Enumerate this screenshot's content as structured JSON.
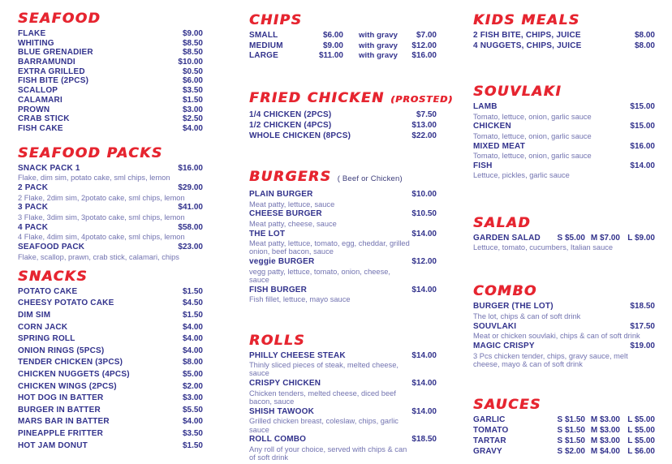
{
  "colors": {
    "heading_red": "#e62530",
    "text_blue": "#32328c",
    "desc_blue": "#7273b0",
    "background": "#ffffff"
  },
  "menu": {
    "left": {
      "seafood": {
        "title": "SEAFOOD",
        "items": [
          {
            "label": "FLAKE",
            "price": "$9.00"
          },
          {
            "label": "WHITING",
            "price": "$8.50"
          },
          {
            "label": "BLUE GRENADIER",
            "price": "$8.50"
          },
          {
            "label": "BARRAMUNDI",
            "price": "$10.00"
          },
          {
            "label": "EXTRA GRILLED",
            "price": "$0.50"
          },
          {
            "label": "FISH BITE (2PCS)",
            "price": "$6.00"
          },
          {
            "label": "SCALLOP",
            "price": "$3.50"
          },
          {
            "label": "CALAMARI",
            "price": "$1.50"
          },
          {
            "label": "PROWN",
            "price": "$3.00"
          },
          {
            "label": "CRAB STICK",
            "price": "$2.50"
          },
          {
            "label": "FISH CAKE",
            "price": "$4.00"
          }
        ]
      },
      "seafood_packs": {
        "title": "SEAFOOD PACKS",
        "items": [
          {
            "label": "SNACK PACK 1",
            "price": "$16.00",
            "desc": "Flake, dim sim, potato cake, sml chips, lemon"
          },
          {
            "label": "2 PACK",
            "price": "$29.00",
            "desc": "2 Flake, 2dim sim, 2potato cake, sml chips, lemon"
          },
          {
            "label": "3 PACK",
            "price": "$41.00",
            "desc": "3 Flake, 3dim sim, 3potato cake, sml chips, lemon"
          },
          {
            "label": "4 PACK",
            "price": "$58.00",
            "desc": "4 Flake, 4dim sim, 4potato cake, sml chips, lemon"
          },
          {
            "label": "SEAFOOD PACK",
            "price": "$23.00",
            "desc": "Flake, scallop, prawn, crab stick, calamari, chips"
          }
        ]
      },
      "snacks": {
        "title": "SNACKS",
        "items": [
          {
            "label": "POTATO CAKE",
            "price": "$1.50"
          },
          {
            "label": "CHEESY POTATO CAKE",
            "price": "$4.50"
          },
          {
            "label": "DIM SIM",
            "price": "$1.50"
          },
          {
            "label": "CORN JACK",
            "price": "$4.00"
          },
          {
            "label": "SPRING ROLL",
            "price": "$4.00"
          },
          {
            "label": "ONION RINGS (5PCS)",
            "price": "$4.00"
          },
          {
            "label": "TENDER CHICKEN (3PCS)",
            "price": "$8.00"
          },
          {
            "label": "CHICKEN NUGGETS (4PCS)",
            "price": "$5.00"
          },
          {
            "label": "CHICKEN WINGS (2PCS)",
            "price": "$2.00"
          },
          {
            "label": "HOT DOG IN BATTER",
            "price": "$3.00"
          },
          {
            "label": "BURGER IN BATTER",
            "price": "$5.50"
          },
          {
            "label": "MARS BAR IN BATTER",
            "price": "$4.00"
          },
          {
            "label": "PINEAPPLE FRITTER",
            "price": "$3.50"
          },
          {
            "label": "HOT JAM DONUT",
            "price": "$1.50"
          }
        ]
      }
    },
    "middle": {
      "chips": {
        "title": "CHIPS",
        "items": [
          {
            "label": "SMALL",
            "price": "$6.00",
            "gravy_label": "with gravy",
            "gravy_price": "$7.00"
          },
          {
            "label": "MEDIUM",
            "price": "$9.00",
            "gravy_label": "with gravy",
            "gravy_price": "$12.00"
          },
          {
            "label": "LARGE",
            "price": "$11.00",
            "gravy_label": "with gravy",
            "gravy_price": "$16.00"
          }
        ]
      },
      "fried_chicken": {
        "title": "FRIED CHICKEN",
        "suffix": "(PROSTED)",
        "items": [
          {
            "label": "1/4 CHICKEN (2PCS)",
            "price": "$7.50"
          },
          {
            "label": "1/2 CHICKEN (4PCS)",
            "price": "$13.00"
          },
          {
            "label": "WHOLE CHICKEN (8PCS)",
            "price": "$22.00"
          }
        ]
      },
      "burgers": {
        "title": "BURGERS",
        "suffix": "( Beef or Chicken)",
        "items": [
          {
            "label": "PLAIN BURGER",
            "price": "$10.00",
            "desc": "Meat patty, lettuce, sauce"
          },
          {
            "label": "CHEESE BURGER",
            "price": "$10.50",
            "desc": "Meat patty, cheese, sauce"
          },
          {
            "label": "THE LOT",
            "price": "$14.00",
            "desc": "Meat patty, lettuce, tomato, egg, cheddar, grilled onion, beef bacon, sauce"
          },
          {
            "label": "veggie BURGER",
            "price": "$12.00",
            "desc": "vegg patty, lettuce, tomato, onion, cheese, sauce"
          },
          {
            "label": "FISH BURGER",
            "price": "$14.00",
            "desc": "Fish fillet, lettuce, mayo sauce"
          }
        ]
      },
      "rolls": {
        "title": "ROLLS",
        "items": [
          {
            "label": "PHILLY CHEESE STEAK",
            "price": "$14.00",
            "desc": "Thinly sliced pieces of steak, melted cheese, sauce"
          },
          {
            "label": "CRISPY CHICKEN",
            "price": "$14.00",
            "desc": "Chicken tenders, melted cheese, diced beef bacon, sauce"
          },
          {
            "label": "SHISH TAWOOK",
            "price": "$14.00",
            "desc": "Grilled chicken breast, coleslaw, chips, garlic sauce"
          },
          {
            "label": "ROLL COMBO",
            "price": "$18.50",
            "desc": "Any roll of your choice, served with chips & can of soft drink"
          }
        ]
      }
    },
    "right": {
      "kids_meals": {
        "title": "KIDS MEALS",
        "items": [
          {
            "label": "2 FISH BITE, CHIPS, JUICE",
            "price": "$8.00"
          },
          {
            "label": "4 NUGGETS, CHIPS, JUICE",
            "price": "$8.00"
          }
        ]
      },
      "souvlaki": {
        "title": "SOUVLAKI",
        "items": [
          {
            "label": "LAMB",
            "price": "$15.00",
            "desc": "Tomato, lettuce, onion, garlic sauce"
          },
          {
            "label": "CHICKEN",
            "price": "$15.00",
            "desc": "Tomato, lettuce, onion, garlic sauce"
          },
          {
            "label": "MIXED MEAT",
            "price": "$16.00",
            "desc": "Tomato, lettuce, onion, garlic sauce"
          },
          {
            "label": "FISH",
            "price": "$14.00",
            "desc": "Lettuce, pickles, garlic sauce"
          }
        ]
      },
      "salad": {
        "title": "SALAD",
        "items": [
          {
            "label": "GARDEN SALAD",
            "price_s": "S $5.00",
            "price_m": "M $7.00",
            "price_l": "L $9.00",
            "desc": "Lettuce, tomato, cucumbers, Italian sauce"
          }
        ]
      },
      "combo": {
        "title": "COMBO",
        "items": [
          {
            "label": "BURGER (THE LOT)",
            "price": "$18.50",
            "desc": "The lot, chips & can of soft drink"
          },
          {
            "label": "SOUVLAKI",
            "price": "$17.50",
            "desc": "Meat or chicken souvlaki, chips & can of soft drink"
          },
          {
            "label": "MAGIC CRISPY",
            "price": "$19.00",
            "desc": "3 Pcs chicken tender, chips, gravy sauce, melt cheese, mayo & can of soft drink"
          }
        ]
      },
      "sauces": {
        "title": "SAUCES",
        "items": [
          {
            "label": "GARLIC",
            "price_s": "S $1.50",
            "price_m": "M $3.00",
            "price_l": "L $5.00"
          },
          {
            "label": "TOMATO",
            "price_s": "S $1.50",
            "price_m": "M $3.00",
            "price_l": "L $5.00"
          },
          {
            "label": "TARTAR",
            "price_s": "S $1.50",
            "price_m": "M $3.00",
            "price_l": "L $5.00"
          },
          {
            "label": "GRAVY",
            "price_s": "S $2.00",
            "price_m": "M $4.00",
            "price_l": "L $6.00"
          }
        ]
      }
    }
  }
}
